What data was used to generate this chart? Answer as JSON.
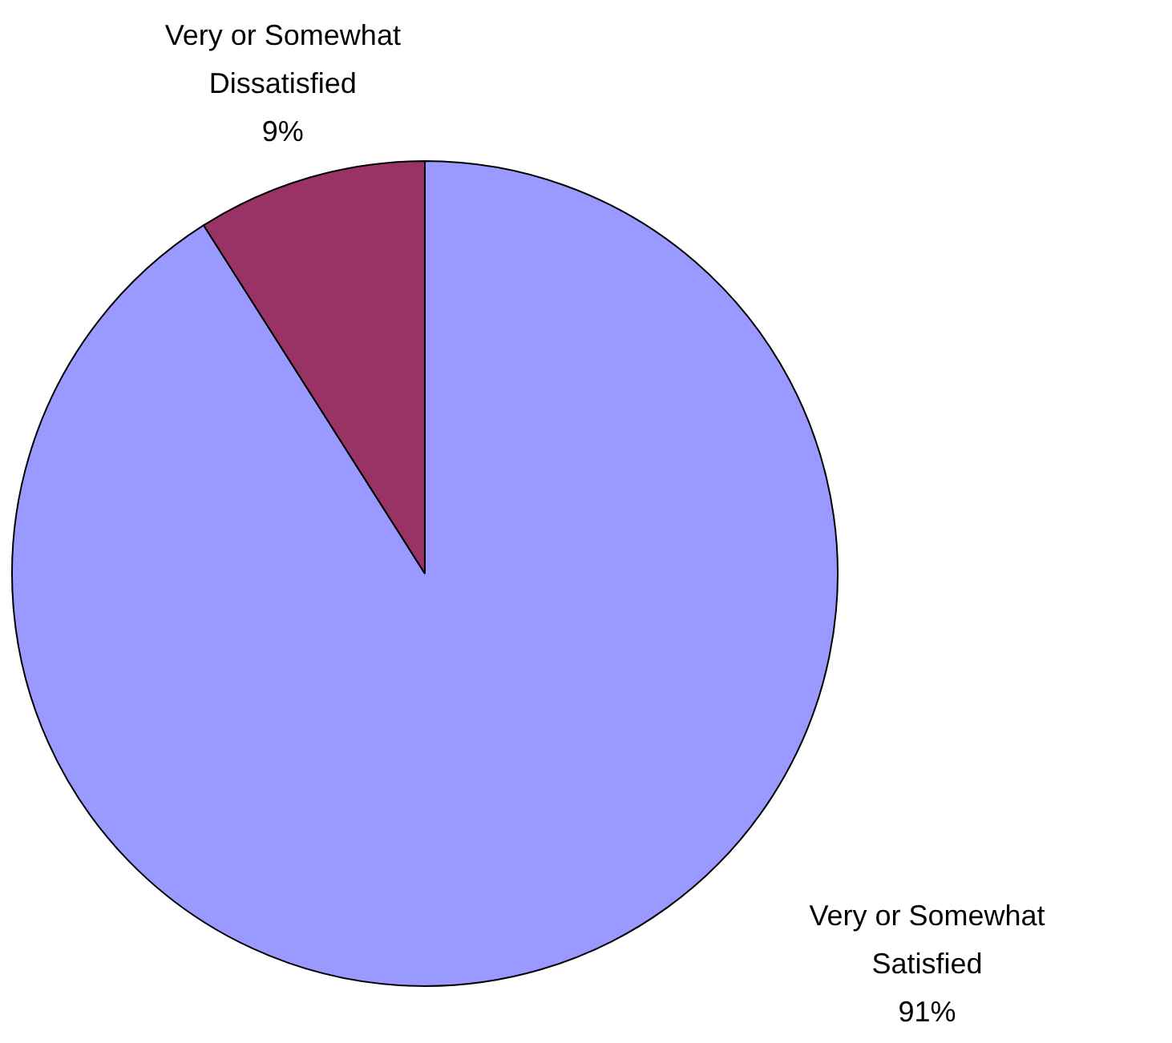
{
  "chart_data": {
    "type": "pie",
    "categories": [
      "Very or Somewhat Satisfied",
      "Very or Somewhat Dissatisfied"
    ],
    "values": [
      91,
      9
    ],
    "colors": [
      "#9999ff",
      "#993366"
    ],
    "value_labels": [
      "91%",
      "9%"
    ],
    "legend": false
  }
}
